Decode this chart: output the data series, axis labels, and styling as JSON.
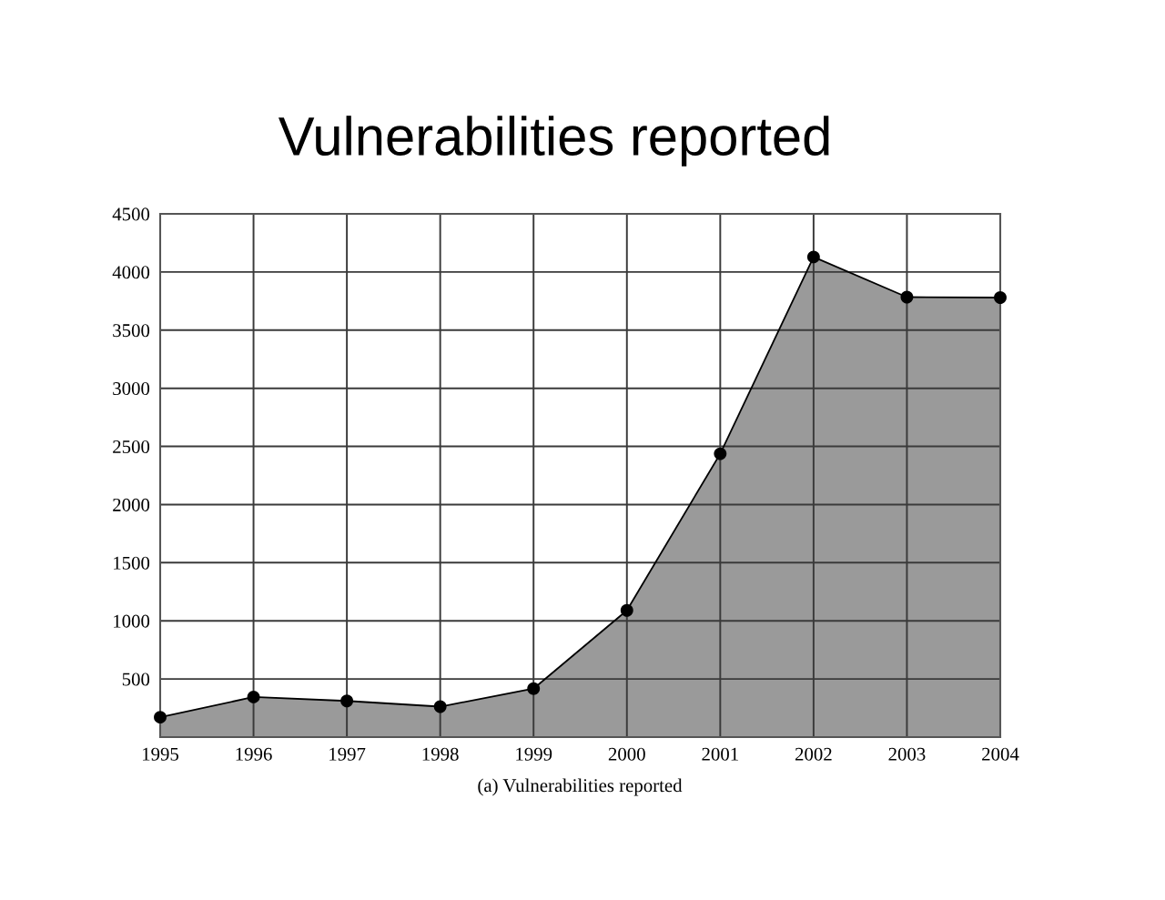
{
  "chart_data": {
    "type": "area",
    "title": "Vulnerabilities reported",
    "annotations": [
      "(a) Vulnerabilities reported"
    ],
    "x": [
      1995,
      1996,
      1997,
      1998,
      1999,
      2000,
      2001,
      2002,
      2003,
      2004
    ],
    "series": [
      {
        "color": "#9a9a9a",
        "values": [
          171,
          345,
          311,
          262,
          417,
          1090,
          2437,
          4129,
          3784,
          3780
        ]
      }
    ],
    "xlim": [
      1995,
      2004
    ],
    "xticks": [
      1995,
      1996,
      1997,
      1998,
      1999,
      2000,
      2001,
      2002,
      2003,
      2004
    ],
    "ylim": [
      0,
      4500
    ],
    "yticks": [
      500,
      1000,
      1500,
      2000,
      2500,
      3000,
      3500,
      4000,
      4500
    ],
    "grid": true,
    "marker": "circle",
    "line_style": "solid"
  }
}
